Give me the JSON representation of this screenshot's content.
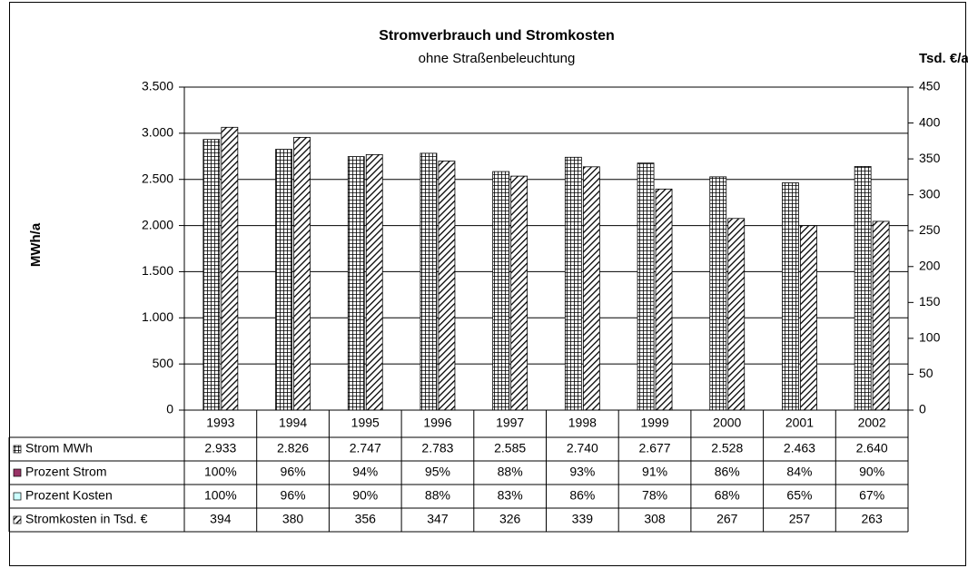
{
  "chart_data": {
    "type": "bar",
    "title": "Stromverbrauch und Stromkosten",
    "subtitle": "ohne Straßenbeleuchtung",
    "ylabel": "MWh/a",
    "y2label": "Tsd. €/a",
    "categories": [
      "1993",
      "1994",
      "1995",
      "1996",
      "1997",
      "1998",
      "1999",
      "2000",
      "2001",
      "2002"
    ],
    "series": [
      {
        "name": "Strom MWh",
        "pattern": "grid",
        "values": [
          2933,
          2826,
          2747,
          2783,
          2585,
          2740,
          2677,
          2528,
          2463,
          2640
        ],
        "value_labels": [
          "2.933",
          "2.826",
          "2.747",
          "2.783",
          "2.585",
          "2.740",
          "2.677",
          "2.528",
          "2.463",
          "2.640"
        ]
      },
      {
        "name": "Prozent Strom",
        "color": "#993366",
        "values": [
          100,
          96,
          94,
          95,
          88,
          93,
          91,
          86,
          84,
          90
        ],
        "value_labels": [
          "100%",
          "96%",
          "94%",
          "95%",
          "88%",
          "93%",
          "91%",
          "86%",
          "84%",
          "90%"
        ]
      },
      {
        "name": "Prozent Kosten",
        "color": "#ccffff",
        "values": [
          100,
          96,
          90,
          88,
          83,
          86,
          78,
          68,
          65,
          67
        ],
        "value_labels": [
          "100%",
          "96%",
          "90%",
          "88%",
          "83%",
          "86%",
          "78%",
          "68%",
          "65%",
          "67%"
        ]
      },
      {
        "name": "Stromkosten in Tsd. €",
        "pattern": "diagonal",
        "axis": "y2",
        "values": [
          394,
          380,
          356,
          347,
          326,
          339,
          308,
          267,
          257,
          263
        ]
      }
    ],
    "plotted": [
      0,
      3
    ],
    "ylim": [
      0,
      3500
    ],
    "yticks": [
      0,
      500,
      {
        "value": 1000,
        "label": "1.000"
      },
      {
        "value": 1500,
        "label": "1.500"
      },
      {
        "value": 2000,
        "label": "2.000"
      },
      {
        "value": 2500,
        "label": "2.500"
      },
      {
        "value": 3000,
        "label": "3.000"
      },
      {
        "value": 3500,
        "label": "3.500"
      }
    ],
    "y2lim": [
      0,
      450
    ],
    "y2ticks": [
      0,
      50,
      100,
      150,
      200,
      250,
      300,
      350,
      400,
      450
    ],
    "grid": true
  }
}
